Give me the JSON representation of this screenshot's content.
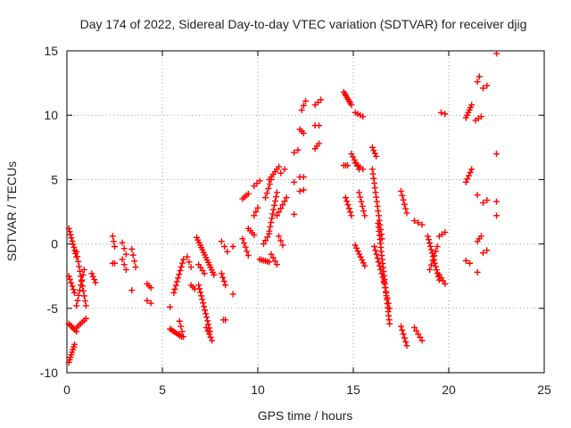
{
  "chart_data": {
    "type": "scatter",
    "title": "Day 174 of 2022, Sidereal Day-to-day VTEC variation (SDTVAR) for receiver djig",
    "xlabel": "GPS time / hours",
    "ylabel": "SDTVAR / TECUs",
    "xlim": [
      0,
      25
    ],
    "ylim": [
      -10,
      15
    ],
    "xticks": [
      "0",
      "5",
      "10",
      "15",
      "20",
      "25"
    ],
    "yticks": [
      "-10",
      "-5",
      "0",
      "5",
      "10",
      "15"
    ],
    "grid": true,
    "marker": "+",
    "color": "#ff0000",
    "segments": [
      {
        "x0": 0.1,
        "x1": 0.5,
        "y0": 1.2,
        "y1": -1.0,
        "n": 10
      },
      {
        "x0": 0.1,
        "x1": 0.4,
        "y0": -2.5,
        "y1": -3.8,
        "n": 6
      },
      {
        "x0": 0.1,
        "x1": 0.5,
        "y0": -6.2,
        "y1": -6.8,
        "n": 6
      },
      {
        "x0": 0.1,
        "x1": 0.4,
        "y0": -9.2,
        "y1": -7.8,
        "n": 8
      },
      {
        "x0": 0.5,
        "x1": 1.0,
        "y0": -0.6,
        "y1": -4.8,
        "n": 12
      },
      {
        "x0": 0.5,
        "x1": 0.9,
        "y0": -4.8,
        "y1": -2.0,
        "n": 8
      },
      {
        "x0": 0.5,
        "x1": 1.0,
        "y0": -6.5,
        "y1": -5.8,
        "n": 6
      },
      {
        "x0": 1.3,
        "x1": 1.5,
        "y0": -2.3,
        "y1": -3.0,
        "n": 4
      },
      {
        "x0": 2.4,
        "x1": 2.5,
        "y0": 0.6,
        "y1": -0.2,
        "n": 3
      },
      {
        "x0": 2.4,
        "x1": 2.5,
        "y0": -1.5,
        "y1": -1.5,
        "n": 2
      },
      {
        "x0": 2.9,
        "x1": 3.1,
        "y0": 0.1,
        "y1": -0.8,
        "n": 3
      },
      {
        "x0": 2.9,
        "x1": 3.1,
        "y0": -1.2,
        "y1": -2.0,
        "n": 3
      },
      {
        "x0": 3.4,
        "x1": 3.6,
        "y0": -0.4,
        "y1": -1.8,
        "n": 4
      },
      {
        "x0": 3.4,
        "x1": 3.5,
        "y0": -3.6,
        "y1": -3.6,
        "n": 1
      },
      {
        "x0": 4.2,
        "x1": 4.4,
        "y0": -3.1,
        "y1": -3.4,
        "n": 3
      },
      {
        "x0": 4.2,
        "x1": 4.4,
        "y0": -4.4,
        "y1": -4.6,
        "n": 2
      },
      {
        "x0": 5.4,
        "x1": 5.5,
        "y0": -4.9,
        "y1": -4.9,
        "n": 1
      },
      {
        "x0": 5.4,
        "x1": 6.0,
        "y0": -6.6,
        "y1": -7.2,
        "n": 8
      },
      {
        "x0": 5.6,
        "x1": 6.1,
        "y0": -3.8,
        "y1": -1.2,
        "n": 10
      },
      {
        "x0": 5.9,
        "x1": 6.1,
        "y0": -6.0,
        "y1": -7.2,
        "n": 4
      },
      {
        "x0": 6.3,
        "x1": 6.5,
        "y0": -1.0,
        "y1": -1.8,
        "n": 3
      },
      {
        "x0": 6.5,
        "x1": 6.7,
        "y0": -3.2,
        "y1": -3.5,
        "n": 3
      },
      {
        "x0": 6.9,
        "x1": 7.2,
        "y0": -1.6,
        "y1": -2.3,
        "n": 4
      },
      {
        "x0": 6.8,
        "x1": 7.7,
        "y0": 0.5,
        "y1": -2.4,
        "n": 16
      },
      {
        "x0": 6.9,
        "x1": 7.5,
        "y0": -3.2,
        "y1": -6.8,
        "n": 14
      },
      {
        "x0": 7.3,
        "x1": 7.6,
        "y0": -6.5,
        "y1": -7.5,
        "n": 5
      },
      {
        "x0": 8.1,
        "x1": 8.4,
        "y0": 0.2,
        "y1": -0.6,
        "n": 3
      },
      {
        "x0": 8.1,
        "x1": 8.3,
        "y0": -2.3,
        "y1": -3.2,
        "n": 4
      },
      {
        "x0": 8.2,
        "x1": 8.3,
        "y0": -5.9,
        "y1": -5.9,
        "n": 2
      },
      {
        "x0": 8.7,
        "x1": 8.8,
        "y0": -0.2,
        "y1": -0.2,
        "n": 1
      },
      {
        "x0": 8.7,
        "x1": 8.8,
        "y0": -3.9,
        "y1": -3.9,
        "n": 1
      },
      {
        "x0": 9.2,
        "x1": 9.5,
        "y0": 0.4,
        "y1": -0.9,
        "n": 5
      },
      {
        "x0": 9.2,
        "x1": 9.5,
        "y0": 3.5,
        "y1": 3.9,
        "n": 4
      },
      {
        "x0": 9.5,
        "x1": 9.8,
        "y0": 1.2,
        "y1": 0.7,
        "n": 4
      },
      {
        "x0": 9.8,
        "x1": 10.0,
        "y0": 2.2,
        "y1": 2.8,
        "n": 3
      },
      {
        "x0": 9.8,
        "x1": 10.1,
        "y0": 4.5,
        "y1": 4.9,
        "n": 3
      },
      {
        "x0": 10.1,
        "x1": 10.6,
        "y0": -1.2,
        "y1": -1.4,
        "n": 6
      },
      {
        "x0": 10.3,
        "x1": 10.6,
        "y0": 0.0,
        "y1": 0.8,
        "n": 4
      },
      {
        "x0": 10.4,
        "x1": 10.7,
        "y0": 3.6,
        "y1": 5.0,
        "n": 5
      },
      {
        "x0": 10.6,
        "x1": 11.0,
        "y0": 1.0,
        "y1": 4.0,
        "n": 10
      },
      {
        "x0": 10.6,
        "x1": 11.1,
        "y0": 5.0,
        "y1": 6.0,
        "n": 6
      },
      {
        "x0": 10.7,
        "x1": 11.0,
        "y0": -0.8,
        "y1": -1.6,
        "n": 4
      },
      {
        "x0": 11.0,
        "x1": 11.5,
        "y0": 2.2,
        "y1": 3.6,
        "n": 6
      },
      {
        "x0": 11.1,
        "x1": 11.3,
        "y0": 0.6,
        "y1": -0.1,
        "n": 3
      },
      {
        "x0": 11.2,
        "x1": 11.4,
        "y0": 5.5,
        "y1": 5.8,
        "n": 2
      },
      {
        "x0": 11.9,
        "x1": 12.0,
        "y0": 2.3,
        "y1": 2.3,
        "n": 1
      },
      {
        "x0": 11.9,
        "x1": 12.0,
        "y0": 4.8,
        "y1": 4.8,
        "n": 1
      },
      {
        "x0": 11.9,
        "x1": 12.1,
        "y0": 7.1,
        "y1": 7.3,
        "n": 2
      },
      {
        "x0": 12.2,
        "x1": 12.4,
        "y0": 5.2,
        "y1": 5.2,
        "n": 2
      },
      {
        "x0": 12.2,
        "x1": 12.4,
        "y0": 4.1,
        "y1": 4.2,
        "n": 2
      },
      {
        "x0": 12.2,
        "x1": 12.4,
        "y0": 8.9,
        "y1": 8.6,
        "n": 3
      },
      {
        "x0": 12.3,
        "x1": 12.5,
        "y0": 10.4,
        "y1": 11.1,
        "n": 3
      },
      {
        "x0": 13.0,
        "x1": 13.2,
        "y0": 7.4,
        "y1": 7.8,
        "n": 3
      },
      {
        "x0": 13.0,
        "x1": 13.2,
        "y0": 9.2,
        "y1": 9.2,
        "n": 2
      },
      {
        "x0": 13.0,
        "x1": 13.3,
        "y0": 10.8,
        "y1": 11.2,
        "n": 3
      },
      {
        "x0": 14.5,
        "x1": 14.9,
        "y0": 11.8,
        "y1": 10.8,
        "n": 8
      },
      {
        "x0": 14.5,
        "x1": 14.7,
        "y0": 6.1,
        "y1": 6.1,
        "n": 3
      },
      {
        "x0": 14.6,
        "x1": 14.9,
        "y0": 3.6,
        "y1": 2.2,
        "n": 6
      },
      {
        "x0": 14.9,
        "x1": 15.3,
        "y0": 7.0,
        "y1": 5.8,
        "n": 6
      },
      {
        "x0": 15.1,
        "x1": 15.6,
        "y0": -0.1,
        "y1": -1.7,
        "n": 8
      },
      {
        "x0": 15.1,
        "x1": 15.5,
        "y0": 10.2,
        "y1": 9.9,
        "n": 4
      },
      {
        "x0": 15.1,
        "x1": 15.5,
        "y0": 6.3,
        "y1": 5.8,
        "n": 4
      },
      {
        "x0": 15.3,
        "x1": 15.6,
        "y0": 4.0,
        "y1": 2.2,
        "n": 6
      },
      {
        "x0": 16.0,
        "x1": 16.2,
        "y0": 7.5,
        "y1": 6.8,
        "n": 4
      },
      {
        "x0": 16.0,
        "x1": 16.5,
        "y0": 5.8,
        "y1": 0.4,
        "n": 16
      },
      {
        "x0": 16.1,
        "x1": 16.6,
        "y0": -0.2,
        "y1": -2.9,
        "n": 10
      },
      {
        "x0": 16.3,
        "x1": 16.9,
        "y0": 1.6,
        "y1": -6.2,
        "n": 26
      },
      {
        "x0": 16.6,
        "x1": 16.9,
        "y0": -3.0,
        "y1": -5.0,
        "n": 6
      },
      {
        "x0": 17.5,
        "x1": 17.8,
        "y0": 4.1,
        "y1": 2.4,
        "n": 6
      },
      {
        "x0": 17.5,
        "x1": 17.8,
        "y0": -6.4,
        "y1": -7.9,
        "n": 6
      },
      {
        "x0": 18.2,
        "x1": 18.6,
        "y0": 1.8,
        "y1": 1.5,
        "n": 3
      },
      {
        "x0": 18.2,
        "x1": 18.6,
        "y0": -6.5,
        "y1": -7.5,
        "n": 5
      },
      {
        "x0": 18.9,
        "x1": 19.5,
        "y0": 0.6,
        "y1": -2.8,
        "n": 14
      },
      {
        "x0": 19.0,
        "x1": 19.4,
        "y0": -2.0,
        "y1": -0.2,
        "n": 6
      },
      {
        "x0": 19.5,
        "x1": 19.8,
        "y0": -2.4,
        "y1": -3.1,
        "n": 4
      },
      {
        "x0": 19.5,
        "x1": 19.8,
        "y0": 0.6,
        "y1": 0.9,
        "n": 3
      },
      {
        "x0": 19.6,
        "x1": 19.8,
        "y0": 10.2,
        "y1": 10.1,
        "n": 2
      },
      {
        "x0": 20.9,
        "x1": 21.2,
        "y0": 9.8,
        "y1": 10.8,
        "n": 6
      },
      {
        "x0": 20.9,
        "x1": 21.2,
        "y0": 4.8,
        "y1": 5.8,
        "n": 5
      },
      {
        "x0": 20.9,
        "x1": 21.1,
        "y0": -1.3,
        "y1": -1.5,
        "n": 2
      },
      {
        "x0": 21.4,
        "x1": 21.7,
        "y0": 9.6,
        "y1": 9.9,
        "n": 3
      },
      {
        "x0": 21.5,
        "x1": 21.6,
        "y0": 12.6,
        "y1": 13.0,
        "n": 2
      },
      {
        "x0": 21.5,
        "x1": 21.7,
        "y0": 0.2,
        "y1": 0.6,
        "n": 3
      },
      {
        "x0": 21.5,
        "x1": 21.6,
        "y0": 3.8,
        "y1": 3.8,
        "n": 1
      },
      {
        "x0": 21.5,
        "x1": 21.6,
        "y0": -2.2,
        "y1": -2.2,
        "n": 1
      },
      {
        "x0": 21.8,
        "x1": 22.0,
        "y0": 12.1,
        "y1": 12.3,
        "n": 2
      },
      {
        "x0": 21.8,
        "x1": 22.0,
        "y0": 3.2,
        "y1": 3.4,
        "n": 2
      },
      {
        "x0": 21.8,
        "x1": 22.0,
        "y0": -0.7,
        "y1": -0.5,
        "n": 2
      },
      {
        "x0": 22.5,
        "x1": 22.6,
        "y0": 14.8,
        "y1": 14.8,
        "n": 1
      },
      {
        "x0": 22.5,
        "x1": 22.6,
        "y0": 7.0,
        "y1": 7.0,
        "n": 1
      },
      {
        "x0": 22.5,
        "x1": 22.6,
        "y0": 3.3,
        "y1": 3.3,
        "n": 1
      },
      {
        "x0": 22.5,
        "x1": 22.6,
        "y0": 2.2,
        "y1": 2.2,
        "n": 1
      }
    ]
  }
}
